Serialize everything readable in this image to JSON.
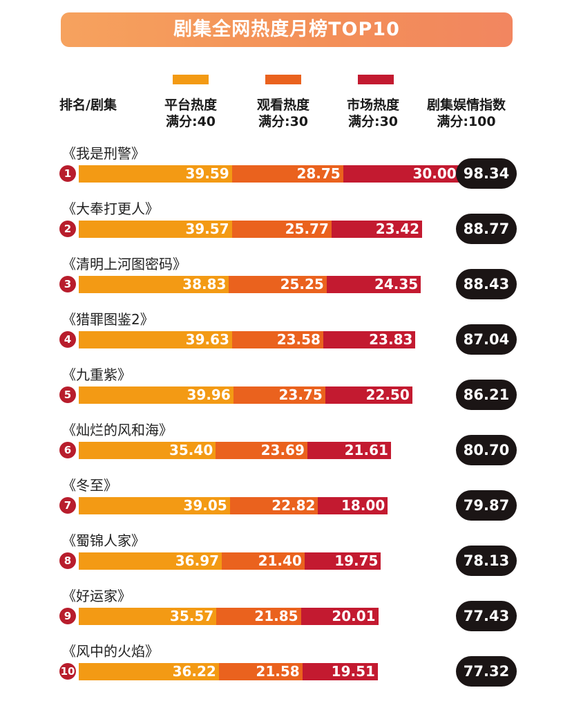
{
  "title": "剧集全网热度月榜TOP10",
  "headers": {
    "rank_show": "排名/剧集",
    "platform": {
      "line1": "平台热度",
      "line2": "满分:40"
    },
    "viewing": {
      "line1": "观看热度",
      "line2": "满分:30"
    },
    "market": {
      "line1": "市场热度",
      "line2": "满分:30"
    },
    "index": {
      "line1": "剧集娱情指数",
      "line2": "满分:100"
    }
  },
  "colors": {
    "platform": "#f39a14",
    "viewing": "#ea621e",
    "market": "#c31a30",
    "badge": "#b81d2c",
    "pill": "#1b1515",
    "banner": "#f59a5c"
  },
  "chart_data": {
    "type": "bar",
    "stacked": true,
    "orientation": "horizontal",
    "title": "剧集全网热度月榜TOP10",
    "categories": [
      "《我是刑警》",
      "《大奉打更人》",
      "《清明上河图密码》",
      "《猎罪图鉴2》",
      "《九重紫》",
      "《灿烂的风和海》",
      "《冬至》",
      "《蜀锦人家》",
      "《好运家》",
      "《风中的火焰》"
    ],
    "ranks": [
      "1",
      "2",
      "3",
      "4",
      "5",
      "6",
      "7",
      "8",
      "9",
      "10"
    ],
    "series": [
      {
        "name": "平台热度",
        "max": 40,
        "values": [
          39.59,
          39.57,
          38.83,
          39.63,
          39.96,
          35.4,
          39.05,
          36.97,
          35.57,
          36.22
        ],
        "labels": [
          "39.59",
          "39.57",
          "38.83",
          "39.63",
          "39.96",
          "35.40",
          "39.05",
          "36.97",
          "35.57",
          "36.22"
        ]
      },
      {
        "name": "观看热度",
        "max": 30,
        "values": [
          28.75,
          25.77,
          25.25,
          23.58,
          23.75,
          23.69,
          22.82,
          21.4,
          21.85,
          21.58
        ],
        "labels": [
          "28.75",
          "25.77",
          "25.25",
          "23.58",
          "23.75",
          "23.69",
          "22.82",
          "21.40",
          "21.85",
          "21.58"
        ]
      },
      {
        "name": "市场热度",
        "max": 30,
        "values": [
          30.0,
          23.42,
          24.35,
          23.83,
          22.5,
          21.61,
          18.0,
          19.75,
          20.01,
          19.51
        ],
        "labels": [
          "30.00",
          "23.42",
          "24.35",
          "23.83",
          "22.50",
          "21.61",
          "18.00",
          "19.75",
          "20.01",
          "19.51"
        ]
      }
    ],
    "index_values": [
      98.34,
      88.77,
      88.43,
      87.04,
      86.21,
      80.7,
      79.87,
      78.13,
      77.43,
      77.32
    ],
    "index_labels": [
      "98.34",
      "88.77",
      "88.43",
      "87.04",
      "86.21",
      "80.70",
      "79.87",
      "78.13",
      "77.43",
      "77.32"
    ],
    "legend_placement": "top",
    "grid": false
  }
}
